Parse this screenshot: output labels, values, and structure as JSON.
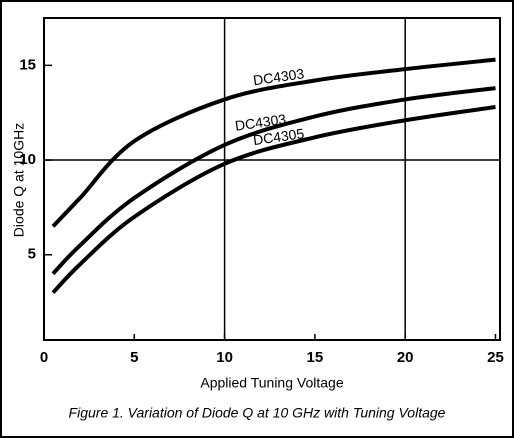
{
  "chart_data": {
    "type": "line",
    "title": "Figure 1. Variation of Diode Q at 10 GHz with Tuning Voltage",
    "x_label": "Applied Tuning Voltage",
    "y_label": "Diode Q at 10GHz",
    "x": [
      0.5,
      2,
      5,
      10,
      15,
      20,
      25
    ],
    "series": [
      {
        "name": "DC4303",
        "color": "#000000",
        "values": [
          6.5,
          8,
          11,
          13.2,
          14.2,
          14.8,
          15.3
        ]
      },
      {
        "name": "DC4303",
        "color": "#000000",
        "values": [
          4,
          5.5,
          8,
          10.8,
          12.3,
          13.2,
          13.8
        ]
      },
      {
        "name": "DC4305",
        "color": "#000000",
        "values": [
          3,
          4.5,
          7,
          9.8,
          11.2,
          12.1,
          12.8
        ]
      }
    ],
    "xlim": [
      0,
      25.25
    ],
    "xticks": [
      0,
      5,
      10,
      15,
      20,
      25
    ],
    "ylim": [
      0.5,
      17.5
    ],
    "yticks": [
      5,
      10,
      15
    ],
    "xgrid": [
      10,
      20
    ],
    "ygrid": [
      10
    ]
  }
}
